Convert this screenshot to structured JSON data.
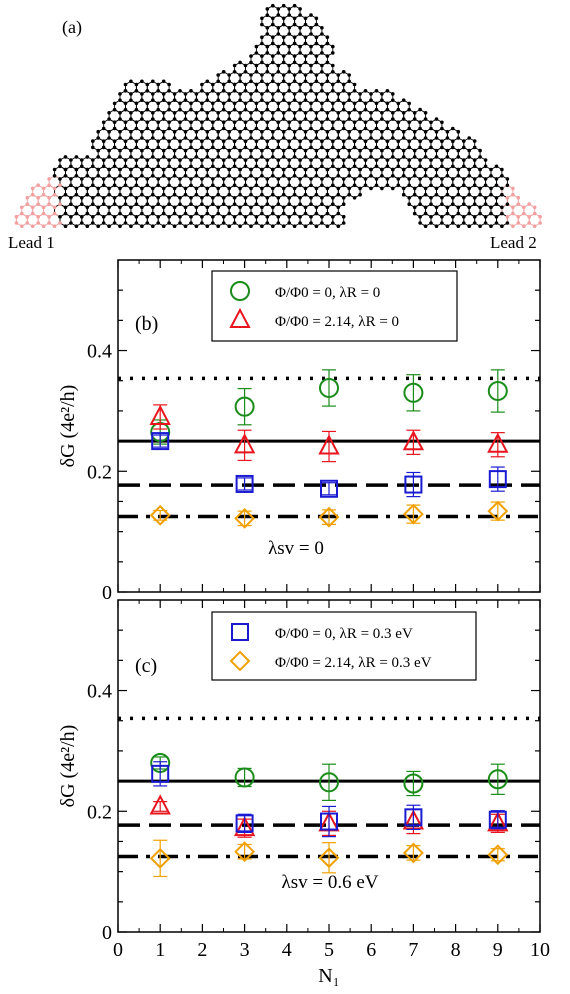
{
  "panel_a": {
    "label": "(a)",
    "lead1": "Lead 1",
    "lead2": "Lead 2"
  },
  "axes": {
    "ylabel_b": "δG (4e²/h)",
    "ylabel_c": "δG (4e²/h)",
    "xlabel": "N₁",
    "xticks": [
      "0",
      "1",
      "2",
      "3",
      "4",
      "5",
      "6",
      "7",
      "8",
      "9",
      "10"
    ],
    "yticks": [
      "0",
      "0.2",
      "0.4"
    ]
  },
  "colors": {
    "green": "#1a8c1a",
    "red": "#e8141e",
    "blue": "#1a1ad2",
    "orange": "#f0a000",
    "lead_red": "#f2a0a0"
  },
  "chart_data": [
    {
      "type": "scatter",
      "panel": "(b)",
      "annotation": "λsv = 0",
      "xlim": [
        0,
        10
      ],
      "ylim": [
        0,
        0.55
      ],
      "legend_position": "top-center",
      "reference_lines": [
        {
          "style": "dotted",
          "y": 0.354
        },
        {
          "style": "solid",
          "y": 0.25
        },
        {
          "style": "dashed",
          "y": 0.177
        },
        {
          "style": "dash-dot",
          "y": 0.125
        }
      ],
      "series": [
        {
          "name": "Φ/Φ0 = 0, λR = 0",
          "marker": "circle",
          "color": "green",
          "x": [
            1,
            3,
            5,
            7,
            9
          ],
          "y": [
            0.265,
            0.307,
            0.338,
            0.33,
            0.333
          ],
          "err": [
            0.02,
            0.03,
            0.03,
            0.03,
            0.035
          ]
        },
        {
          "name": "Φ/Φ0 = 2.14, λR = 0",
          "marker": "triangle",
          "color": "red",
          "x": [
            1,
            3,
            5,
            7,
            9
          ],
          "y": [
            0.29,
            0.243,
            0.241,
            0.248,
            0.244
          ],
          "err": [
            0.02,
            0.025,
            0.025,
            0.02,
            0.02
          ]
        },
        {
          "name": "",
          "marker": "square",
          "color": "blue",
          "x": [
            1,
            3,
            5,
            7,
            9
          ],
          "y": [
            0.25,
            0.179,
            0.171,
            0.178,
            0.187
          ],
          "err": [
            0.01,
            0.01,
            0.01,
            0.02,
            0.02
          ]
        },
        {
          "name": "",
          "marker": "diamond",
          "color": "orange",
          "x": [
            1,
            3,
            5,
            7,
            9
          ],
          "y": [
            0.127,
            0.122,
            0.124,
            0.129,
            0.134
          ],
          "err": [
            0.008,
            0.012,
            0.012,
            0.015,
            0.015
          ]
        }
      ]
    },
    {
      "type": "scatter",
      "panel": "(c)",
      "annotation": "λsv = 0.6 eV",
      "xlim": [
        0,
        10
      ],
      "ylim": [
        0,
        0.55
      ],
      "legend_position": "top-center",
      "reference_lines": [
        {
          "style": "dotted",
          "y": 0.354
        },
        {
          "style": "solid",
          "y": 0.25
        },
        {
          "style": "dashed",
          "y": 0.177
        },
        {
          "style": "dash-dot",
          "y": 0.125
        }
      ],
      "series": [
        {
          "name": "",
          "marker": "circle",
          "color": "green",
          "x": [
            1,
            3,
            5,
            7,
            9
          ],
          "y": [
            0.28,
            0.256,
            0.248,
            0.246,
            0.253
          ],
          "err": [
            0.01,
            0.015,
            0.03,
            0.02,
            0.025
          ]
        },
        {
          "name": "",
          "marker": "triangle",
          "color": "red",
          "x": [
            1,
            3,
            5,
            7,
            9
          ],
          "y": [
            0.208,
            0.172,
            0.18,
            0.183,
            0.18
          ],
          "err": [
            0.008,
            0.015,
            0.02,
            0.02,
            0.015
          ]
        },
        {
          "name": "Φ/Φ0 = 0, λR = 0.3 eV",
          "marker": "square",
          "color": "blue",
          "x": [
            1,
            3,
            5,
            7,
            9
          ],
          "y": [
            0.262,
            0.18,
            0.183,
            0.19,
            0.186
          ],
          "err": [
            0.02,
            0.015,
            0.025,
            0.02,
            0.015
          ]
        },
        {
          "name": "Φ/Φ0 = 2.14, λR = 0.3 eV",
          "marker": "diamond",
          "color": "orange",
          "x": [
            1,
            3,
            5,
            7,
            9
          ],
          "y": [
            0.122,
            0.133,
            0.123,
            0.131,
            0.128
          ],
          "err": [
            0.03,
            0.012,
            0.025,
            0.012,
            0.01
          ]
        }
      ]
    }
  ]
}
